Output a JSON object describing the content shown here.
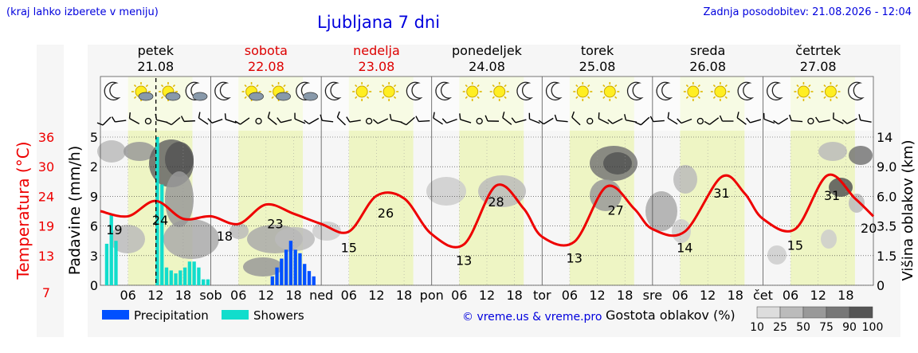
{
  "header": {
    "note": "(kraj lahko izberete v meniju)",
    "title": "Ljubljana 7 dni",
    "updated": "Zadnja posodobitev: 21.08.2026 - 12:04"
  },
  "days": [
    {
      "name": "petek",
      "date": "21.08",
      "weekend": false
    },
    {
      "name": "sobota",
      "date": "22.08",
      "weekend": true
    },
    {
      "name": "nedelja",
      "date": "23.08",
      "weekend": true
    },
    {
      "name": "ponedeljek",
      "date": "24.08",
      "weekend": false
    },
    {
      "name": "torek",
      "date": "25.08",
      "weekend": false
    },
    {
      "name": "sreda",
      "date": "26.08",
      "weekend": false
    },
    {
      "name": "četrtek",
      "date": "27.08",
      "weekend": false
    }
  ],
  "colors": {
    "temperature": "#ee0000",
    "precipitation": "#0050ff",
    "showers": "#11ddcc",
    "daylight": "#eef5c4",
    "weekend_text": "#dd0000",
    "brand": "#0000dd"
  },
  "legend": {
    "precipitation": "Precipitation",
    "showers": "Showers",
    "copyright": "© vreme.us & vreme.pro",
    "cloud_title": "Gostota oblakov (%)",
    "cloud_levels": [
      "10",
      "25",
      "50",
      "75",
      "90",
      "100"
    ]
  },
  "chart_data": {
    "type": "line",
    "x_start": "2026-08-21 00:00",
    "x_end": "2026-08-28 00:00",
    "x_tick_labels": [
      "06",
      "12",
      "18",
      "sob",
      "06",
      "12",
      "18",
      "ned",
      "06",
      "12",
      "18",
      "pon",
      "06",
      "12",
      "18",
      "tor",
      "06",
      "12",
      "18",
      "sre",
      "06",
      "12",
      "18",
      "čet",
      "06",
      "12",
      "18"
    ],
    "axes": {
      "temperature": {
        "label": "Temperatura (°C)",
        "ticks": [
          "7",
          "13",
          "19",
          "24",
          "30",
          "36"
        ],
        "range": [
          7,
          36
        ]
      },
      "precipitation": {
        "label": "Padavine (mm/h)",
        "ticks": [
          "0",
          "3",
          "6",
          "9",
          "2",
          "5"
        ]
      },
      "cloud_height": {
        "label": "Višina oblakov (km)",
        "ticks": [
          "0",
          "1.5",
          "3.5",
          "6.0",
          "9.0",
          "14"
        ]
      }
    },
    "series": [
      {
        "name": "Temperatura",
        "x": [
          "2026-08-21 00:00",
          "2026-08-21 06:00",
          "2026-08-21 12:00",
          "2026-08-21 18:00",
          "2026-08-22 00:00",
          "2026-08-22 06:00",
          "2026-08-22 12:00",
          "2026-08-22 18:00",
          "2026-08-23 00:00",
          "2026-08-23 06:00",
          "2026-08-23 12:00",
          "2026-08-23 18:00",
          "2026-08-24 00:00",
          "2026-08-24 07:00",
          "2026-08-24 14:00",
          "2026-08-24 20:00",
          "2026-08-25 00:00",
          "2026-08-25 07:00",
          "2026-08-25 14:00",
          "2026-08-25 20:00",
          "2026-08-26 00:00",
          "2026-08-26 07:00",
          "2026-08-26 15:00",
          "2026-08-26 20:00",
          "2026-08-27 00:00",
          "2026-08-27 07:00",
          "2026-08-27 14:00",
          "2026-08-27 20:00",
          "2026-08-28 00:00"
        ],
        "y": [
          21.5,
          20.5,
          23.5,
          20,
          20.5,
          19,
          22.8,
          21,
          19,
          17.5,
          24.5,
          24,
          17,
          15,
          26.5,
          22,
          16.5,
          15.5,
          26.3,
          22,
          18,
          17.5,
          28.2,
          25,
          20,
          18,
          28.5,
          24,
          20.5
        ]
      }
    ],
    "labels": [
      {
        "x": "2026-08-21 03:00",
        "text": "19"
      },
      {
        "x": "2026-08-21 13:00",
        "text": "24"
      },
      {
        "x": "2026-08-22 03:00",
        "text": "18"
      },
      {
        "x": "2026-08-22 14:00",
        "text": "23"
      },
      {
        "x": "2026-08-23 06:00",
        "text": "15"
      },
      {
        "x": "2026-08-23 14:00",
        "text": "26"
      },
      {
        "x": "2026-08-24 07:00",
        "text": "13"
      },
      {
        "x": "2026-08-24 14:00",
        "text": "28"
      },
      {
        "x": "2026-08-25 07:00",
        "text": "13"
      },
      {
        "x": "2026-08-25 16:00",
        "text": "27"
      },
      {
        "x": "2026-08-26 07:00",
        "text": "14"
      },
      {
        "x": "2026-08-26 15:00",
        "text": "31"
      },
      {
        "x": "2026-08-27 07:00",
        "text": "15"
      },
      {
        "x": "2026-08-27 15:00",
        "text": "31"
      },
      {
        "x": "2026-08-27 23:00",
        "text": "20"
      }
    ],
    "showers": {
      "x": [
        "2026-08-21 01:00",
        "2026-08-21 02:00",
        "2026-08-21 03:00",
        "2026-08-21 12:00",
        "2026-08-21 13:00",
        "2026-08-21 14:00",
        "2026-08-21 15:00",
        "2026-08-21 16:00",
        "2026-08-21 17:00",
        "2026-08-21 18:00",
        "2026-08-21 19:00",
        "2026-08-21 20:00",
        "2026-08-21 21:00",
        "2026-08-21 22:00",
        "2026-08-21 23:00"
      ],
      "y": [
        1.4,
        2.4,
        1.5,
        5.0,
        3.4,
        0.6,
        0.5,
        0.4,
        0.5,
        0.6,
        0.8,
        0.8,
        0.6,
        0.2,
        0.2
      ]
    },
    "precipitation": {
      "x": [
        "2026-08-22 13:00",
        "2026-08-22 14:00",
        "2026-08-22 15:00",
        "2026-08-22 16:00",
        "2026-08-22 17:00",
        "2026-08-22 18:00",
        "2026-08-22 19:00",
        "2026-08-22 20:00",
        "2026-08-22 21:00",
        "2026-08-22 22:00"
      ],
      "y": [
        0.05,
        0.1,
        0.15,
        0.2,
        0.25,
        0.2,
        0.18,
        0.12,
        0.08,
        0.05
      ]
    },
    "current_time": "2026-08-21 12:04",
    "grid": true
  }
}
